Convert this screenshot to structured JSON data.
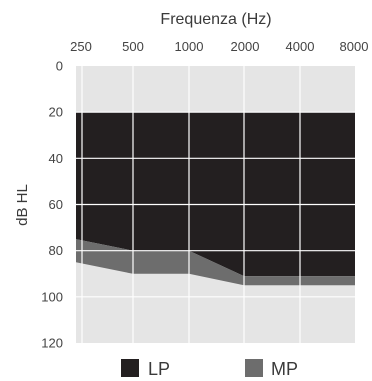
{
  "chart_data": {
    "type": "area",
    "title": "Frequenza (Hz)",
    "xlabel": "Frequenza (Hz)",
    "ylabel": "dB HL",
    "x_ticks": [
      "250",
      "500",
      "1000",
      "2000",
      "4000",
      "8000"
    ],
    "y_ticks": [
      "0",
      "20",
      "40",
      "60",
      "80",
      "100",
      "120"
    ],
    "ylim": [
      0,
      120
    ],
    "y_inverted": true,
    "x_scale": "log",
    "grid": true,
    "legend_position": "bottom",
    "series": [
      {
        "name": "LP",
        "color": "#231f20",
        "points": [
          {
            "x": 250,
            "top": 20,
            "bottom": 75
          },
          {
            "x": 500,
            "top": 20,
            "bottom": 80
          },
          {
            "x": 1000,
            "top": 20,
            "bottom": 80
          },
          {
            "x": 2000,
            "top": 20,
            "bottom": 91
          },
          {
            "x": 4000,
            "top": 20,
            "bottom": 91
          },
          {
            "x": 8000,
            "top": 20,
            "bottom": 91
          },
          {
            "x": 12000,
            "top": 20,
            "bottom": 91
          }
        ]
      },
      {
        "name": "MP",
        "color": "#6d6d6d",
        "points": [
          {
            "x": 250,
            "top": 75,
            "bottom": 85
          },
          {
            "x": 500,
            "top": 80,
            "bottom": 90
          },
          {
            "x": 1000,
            "top": 80,
            "bottom": 90
          },
          {
            "x": 2000,
            "top": 91,
            "bottom": 95
          },
          {
            "x": 4000,
            "top": 91,
            "bottom": 95
          },
          {
            "x": 8000,
            "top": 91,
            "bottom": 95
          },
          {
            "x": 12000,
            "top": 91,
            "bottom": 95
          }
        ]
      }
    ],
    "colors": {
      "plot_background": "#e5e5e5",
      "grid": "#ffffff"
    }
  }
}
